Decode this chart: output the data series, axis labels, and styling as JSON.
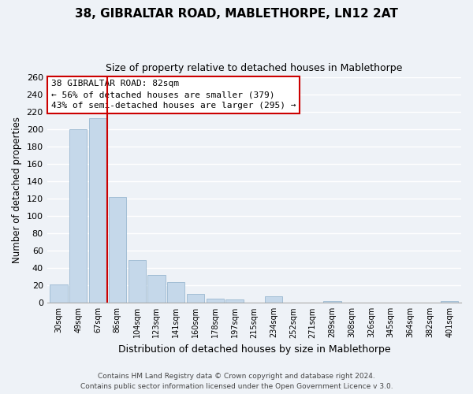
{
  "title": "38, GIBRALTAR ROAD, MABLETHORPE, LN12 2AT",
  "subtitle": "Size of property relative to detached houses in Mablethorpe",
  "xlabel": "Distribution of detached houses by size in Mablethorpe",
  "ylabel": "Number of detached properties",
  "bar_color": "#c5d8ea",
  "bar_edge_color": "#9ab8d0",
  "background_color": "#eef2f7",
  "grid_color": "#ffffff",
  "bin_labels": [
    "30sqm",
    "49sqm",
    "67sqm",
    "86sqm",
    "104sqm",
    "123sqm",
    "141sqm",
    "160sqm",
    "178sqm",
    "197sqm",
    "215sqm",
    "234sqm",
    "252sqm",
    "271sqm",
    "289sqm",
    "308sqm",
    "326sqm",
    "345sqm",
    "364sqm",
    "382sqm",
    "401sqm"
  ],
  "bar_heights": [
    21,
    200,
    213,
    122,
    49,
    32,
    24,
    10,
    5,
    4,
    0,
    8,
    0,
    0,
    2,
    0,
    0,
    0,
    0,
    0,
    2
  ],
  "ylim": [
    0,
    260
  ],
  "yticks": [
    0,
    20,
    40,
    60,
    80,
    100,
    120,
    140,
    160,
    180,
    200,
    220,
    240,
    260
  ],
  "property_line_color": "#cc0000",
  "annotation_line1": "38 GIBRALTAR ROAD: 82sqm",
  "annotation_line2": "← 56% of detached houses are smaller (379)",
  "annotation_line3": "43% of semi-detached houses are larger (295) →",
  "annotation_box_color": "white",
  "annotation_box_edge": "#cc0000",
  "footer": "Contains HM Land Registry data © Crown copyright and database right 2024.\nContains public sector information licensed under the Open Government Licence v 3.0."
}
